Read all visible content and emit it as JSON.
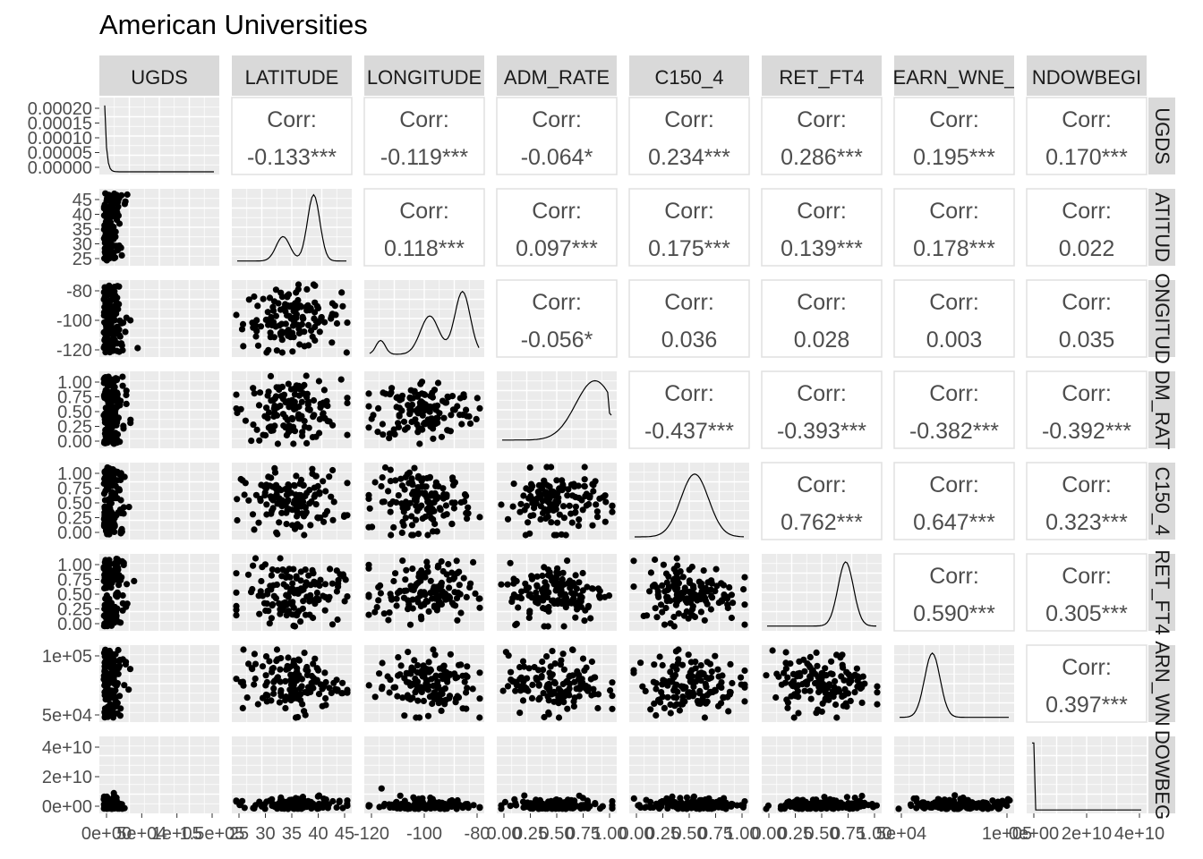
{
  "title": "American Universities",
  "chart_data": {
    "type": "scatter-matrix",
    "title": "American Universities",
    "variables": [
      "UGDS",
      "LATITUDE",
      "LONGITUDE",
      "ADM_RATE",
      "C150_4",
      "RET_FT4",
      "EARN_WNE_",
      "NDOWBEGI"
    ],
    "row_strip_labels": [
      "UGDS",
      "ATITUD",
      "ONGITUD",
      "DM_RAT",
      "C150_4",
      "RET_FT4",
      "ARN_WN",
      "DOWBEG"
    ],
    "column_strip_labels": [
      "UGDS",
      "LATITUDE",
      "LONGITUDE",
      "ADM_RATE",
      "C150_4",
      "RET_FT4",
      "EARN_WNE_",
      "NDOWBEGI"
    ],
    "corr_label": "Corr:",
    "correlations": [
      {
        "row": 0,
        "col": 1,
        "value": "-0.133***"
      },
      {
        "row": 0,
        "col": 2,
        "value": "-0.119***"
      },
      {
        "row": 0,
        "col": 3,
        "value": "-0.064*"
      },
      {
        "row": 0,
        "col": 4,
        "value": "0.234***"
      },
      {
        "row": 0,
        "col": 5,
        "value": "0.286***"
      },
      {
        "row": 0,
        "col": 6,
        "value": "0.195***"
      },
      {
        "row": 0,
        "col": 7,
        "value": "0.170***"
      },
      {
        "row": 1,
        "col": 2,
        "value": "0.118***"
      },
      {
        "row": 1,
        "col": 3,
        "value": "0.097***"
      },
      {
        "row": 1,
        "col": 4,
        "value": "0.175***"
      },
      {
        "row": 1,
        "col": 5,
        "value": "0.139***"
      },
      {
        "row": 1,
        "col": 6,
        "value": "0.178***"
      },
      {
        "row": 1,
        "col": 7,
        "value": "0.022"
      },
      {
        "row": 2,
        "col": 3,
        "value": "-0.056*"
      },
      {
        "row": 2,
        "col": 4,
        "value": "0.036"
      },
      {
        "row": 2,
        "col": 5,
        "value": "0.028"
      },
      {
        "row": 2,
        "col": 6,
        "value": "0.003"
      },
      {
        "row": 2,
        "col": 7,
        "value": "0.035"
      },
      {
        "row": 3,
        "col": 4,
        "value": "-0.437***"
      },
      {
        "row": 3,
        "col": 5,
        "value": "-0.393***"
      },
      {
        "row": 3,
        "col": 6,
        "value": "-0.382***"
      },
      {
        "row": 3,
        "col": 7,
        "value": "-0.392***"
      },
      {
        "row": 4,
        "col": 5,
        "value": "0.762***"
      },
      {
        "row": 4,
        "col": 6,
        "value": "0.647***"
      },
      {
        "row": 4,
        "col": 7,
        "value": "0.323***"
      },
      {
        "row": 5,
        "col": 6,
        "value": "0.590***"
      },
      {
        "row": 5,
        "col": 7,
        "value": "0.305***"
      },
      {
        "row": 6,
        "col": 7,
        "value": "0.397***"
      }
    ],
    "y_axis_ticks": [
      [
        "0.00020",
        "0.00015",
        "0.00010",
        "0.00005",
        "0.00000"
      ],
      [
        "45",
        "40",
        "35",
        "30",
        "25"
      ],
      [
        "-80",
        "-100",
        "-120"
      ],
      [
        "1.00",
        "0.75",
        "0.50",
        "0.25",
        "0.00"
      ],
      [
        "1.00",
        "0.75",
        "0.50",
        "0.25",
        "0.00"
      ],
      [
        "1.00",
        "0.75",
        "0.50",
        "0.25",
        "0.00"
      ],
      [
        "1e+05",
        "5e+04"
      ],
      [
        "4e+10",
        "2e+10",
        "0e+00"
      ]
    ],
    "x_axis_ticks": [
      [
        "0e+00",
        "5e+04",
        "1e+05",
        "1.5e+05"
      ],
      [
        "25",
        "30",
        "35",
        "40",
        "45"
      ],
      [
        "-120",
        "-100",
        "-80"
      ],
      [
        "0.00",
        "0.25",
        "0.50",
        "0.75",
        "1.00"
      ],
      [
        "0.00",
        "0.25",
        "0.50",
        "0.75",
        "1.00"
      ],
      [
        "0.00",
        "0.25",
        "0.50",
        "0.75",
        "1.00"
      ],
      [
        "5e+04",
        "1e+05"
      ],
      [
        "0e+00",
        "2e+10",
        "4e+10"
      ]
    ],
    "grid": true,
    "panel_background": "#ebebeb",
    "strip_background": "#d9d9d9",
    "point_color": "#000000",
    "text_color": "#4d4d4d"
  }
}
